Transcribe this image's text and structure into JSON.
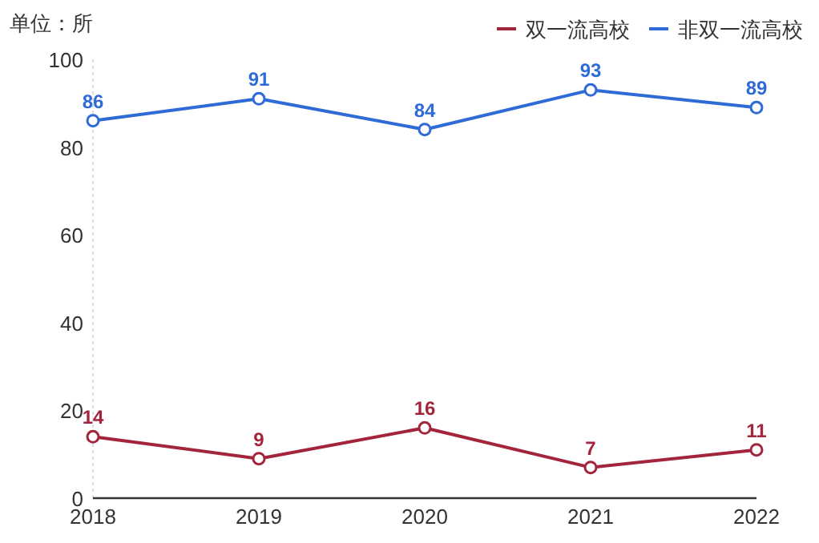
{
  "chart_data": {
    "type": "line",
    "ylabel": "单位：所",
    "categories": [
      "2018",
      "2019",
      "2020",
      "2021",
      "2022"
    ],
    "series": [
      {
        "name": "双一流高校",
        "color": "#a3253c",
        "values": [
          14,
          9,
          16,
          7,
          11
        ]
      },
      {
        "name": "非双一流高校",
        "color": "#2f6bd6",
        "values": [
          86,
          91,
          84,
          93,
          89
        ]
      }
    ],
    "ylim": [
      0,
      100
    ],
    "yticks": [
      0,
      20,
      40,
      60,
      80,
      100
    ],
    "legend": "top right",
    "marker": "circle",
    "line_style": "solid",
    "data_labels": true
  }
}
